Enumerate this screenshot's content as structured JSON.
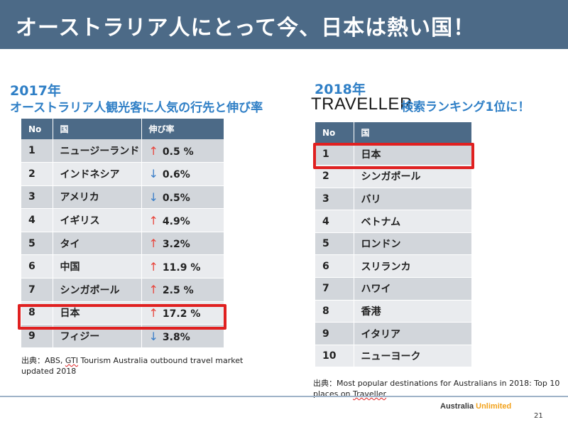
{
  "title": "オーストラリア人にとって今、日本は熱い国！",
  "left": {
    "year": "2017年",
    "subtitle": "オーストラリア人観光客に人気の行先と伸び率",
    "headers": [
      "No",
      "国",
      "伸び率"
    ],
    "rows": [
      {
        "no": "1",
        "country": "ニュージーランド",
        "arrow": "↑",
        "growth": "0.5 %"
      },
      {
        "no": "2",
        "country": "インドネシア",
        "arrow": "↓",
        "growth": "0.6%"
      },
      {
        "no": "3",
        "country": "アメリカ",
        "arrow": "↓",
        "growth": "0.5%"
      },
      {
        "no": "4",
        "country": "イギリス",
        "arrow": "↑",
        "growth": "4.9%"
      },
      {
        "no": "5",
        "country": "タイ",
        "arrow": "↑",
        "growth": "3.2%"
      },
      {
        "no": "6",
        "country": "中国",
        "arrow": "↑",
        "growth": "11.9 %"
      },
      {
        "no": "7",
        "country": "シンガポール",
        "arrow": "↑",
        "growth": "2.5 %"
      },
      {
        "no": "8",
        "country": "日本",
        "arrow": "↑",
        "growth": "17.2 %"
      },
      {
        "no": "9",
        "country": "フィジー",
        "arrow": "↓",
        "growth": "3.8%"
      }
    ],
    "source_prefix": "出典：ABS, ",
    "source_gti": "GTI",
    "source_rest": " Tourism Australia outbound travel market updated 2018"
  },
  "right": {
    "year": "2018年",
    "logo": "TRAVELLER",
    "subtitle": "検索ランキング1位に！",
    "headers": [
      "No",
      "国"
    ],
    "rows": [
      {
        "no": "1",
        "place": "日本"
      },
      {
        "no": "2",
        "place": "シンガポール"
      },
      {
        "no": "3",
        "place": "バリ"
      },
      {
        "no": "4",
        "place": "ベトナム"
      },
      {
        "no": "5",
        "place": "ロンドン"
      },
      {
        "no": "6",
        "place": "スリランカ"
      },
      {
        "no": "7",
        "place": "ハワイ"
      },
      {
        "no": "8",
        "place": "香港"
      },
      {
        "no": "9",
        "place": "イタリア"
      },
      {
        "no": "10",
        "place": "ニューヨーク"
      }
    ],
    "source_prefix": "出典：Most popular destinations for Australians in 2018: Top 10 places on ",
    "source_traveller": "Traveller"
  },
  "footer": {
    "brand_1": "Australia ",
    "brand_2": "Unlimited",
    "page": "21"
  },
  "colors": {
    "header_bg": "#4c6a87",
    "heading_blue": "#2f7fc6",
    "highlight_red": "#e02020",
    "arrow_up": "#e8453c",
    "arrow_down": "#3a7ec8",
    "brand_orange": "#f2a21b"
  }
}
